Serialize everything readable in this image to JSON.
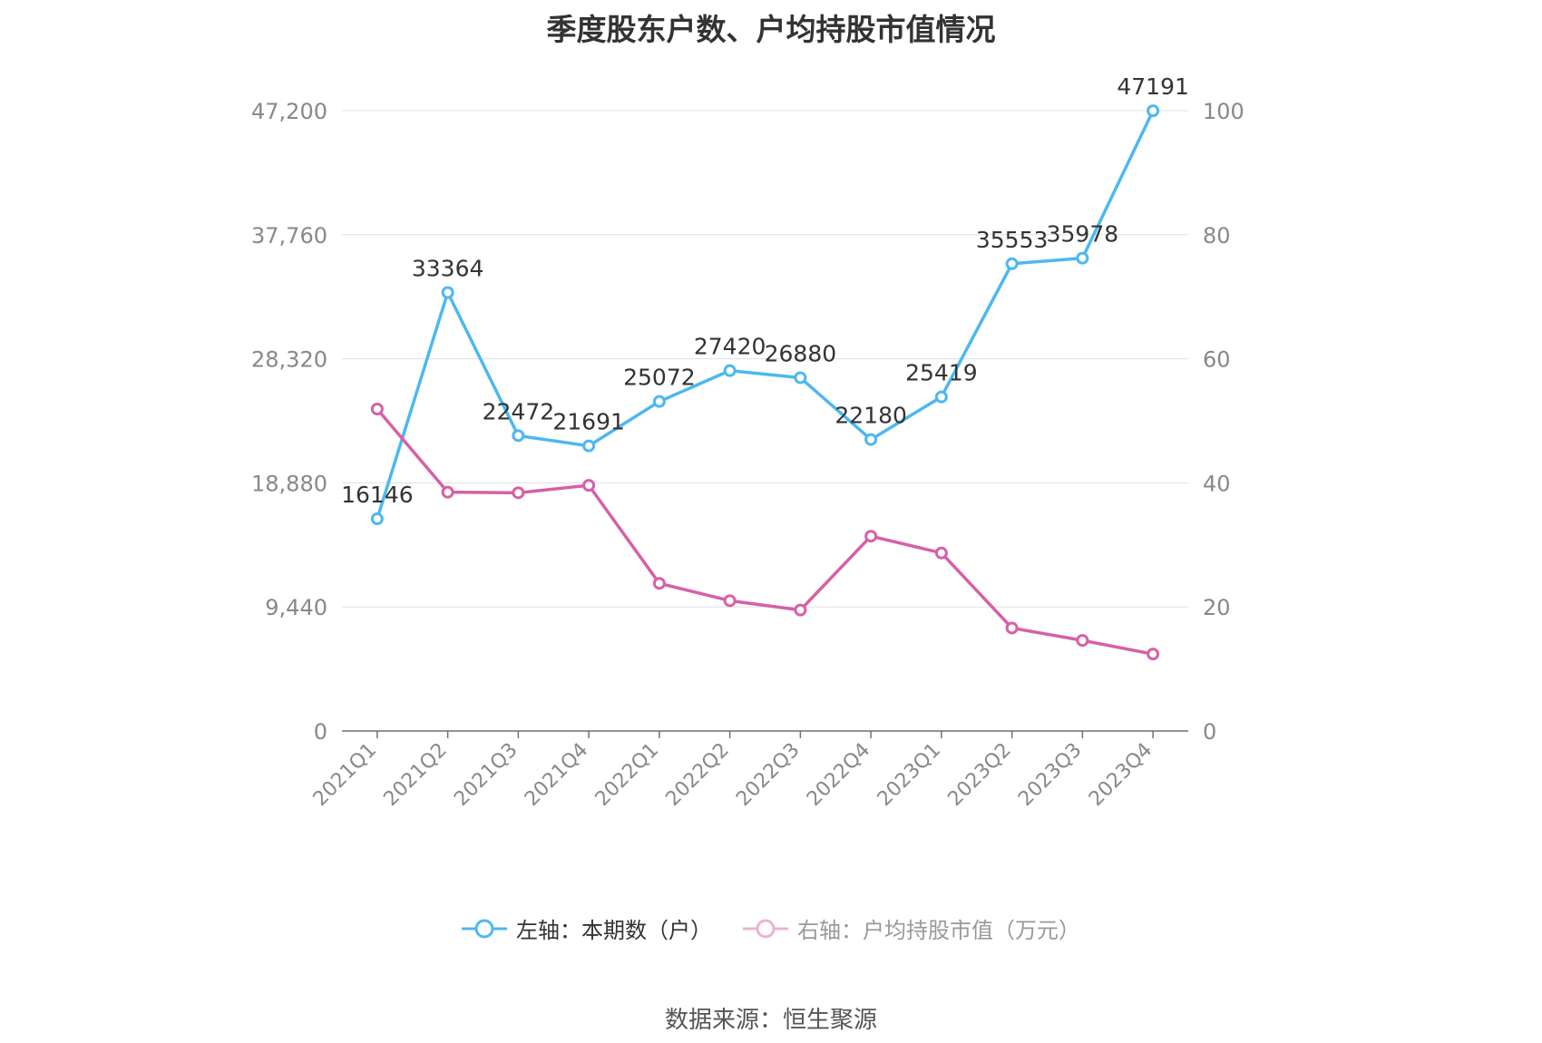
{
  "chart_data": {
    "type": "line",
    "title": "季度股东户数、户均持股市值情况",
    "categories": [
      "2021Q1",
      "2021Q2",
      "2021Q3",
      "2021Q4",
      "2022Q1",
      "2022Q2",
      "2022Q3",
      "2022Q4",
      "2023Q1",
      "2023Q2",
      "2023Q3",
      "2023Q4"
    ],
    "series": [
      {
        "name": "左轴：本期数（户）",
        "axis": "left",
        "color": "#4db8ef",
        "values": [
          16146,
          33364,
          22472,
          21691,
          25072,
          27420,
          26880,
          22180,
          25419,
          35553,
          35978,
          47191
        ],
        "labels": [
          "16146",
          "33364",
          "22472",
          "21691",
          "25072",
          "27420",
          "26880",
          "22180",
          "25419",
          "35553",
          "35978",
          "47191"
        ]
      },
      {
        "name": "右轴：户均持股市值（万元）",
        "axis": "right",
        "color": "#d660a6",
        "values": [
          51.9,
          38.5,
          38.4,
          39.6,
          23.8,
          21.0,
          19.5,
          31.4,
          28.7,
          16.6,
          14.6,
          12.4
        ]
      }
    ],
    "y_left": {
      "ylim": [
        0,
        47200
      ],
      "ticks": [
        "0",
        "9,440",
        "18,880",
        "28,320",
        "37,760",
        "47,200"
      ]
    },
    "y_right": {
      "ylim": [
        0,
        100
      ],
      "ticks": [
        "0",
        "20",
        "40",
        "60",
        "80",
        "100"
      ]
    },
    "grid": true,
    "legend_position": "bottom"
  },
  "source_text": "数据来源：恒生聚源"
}
